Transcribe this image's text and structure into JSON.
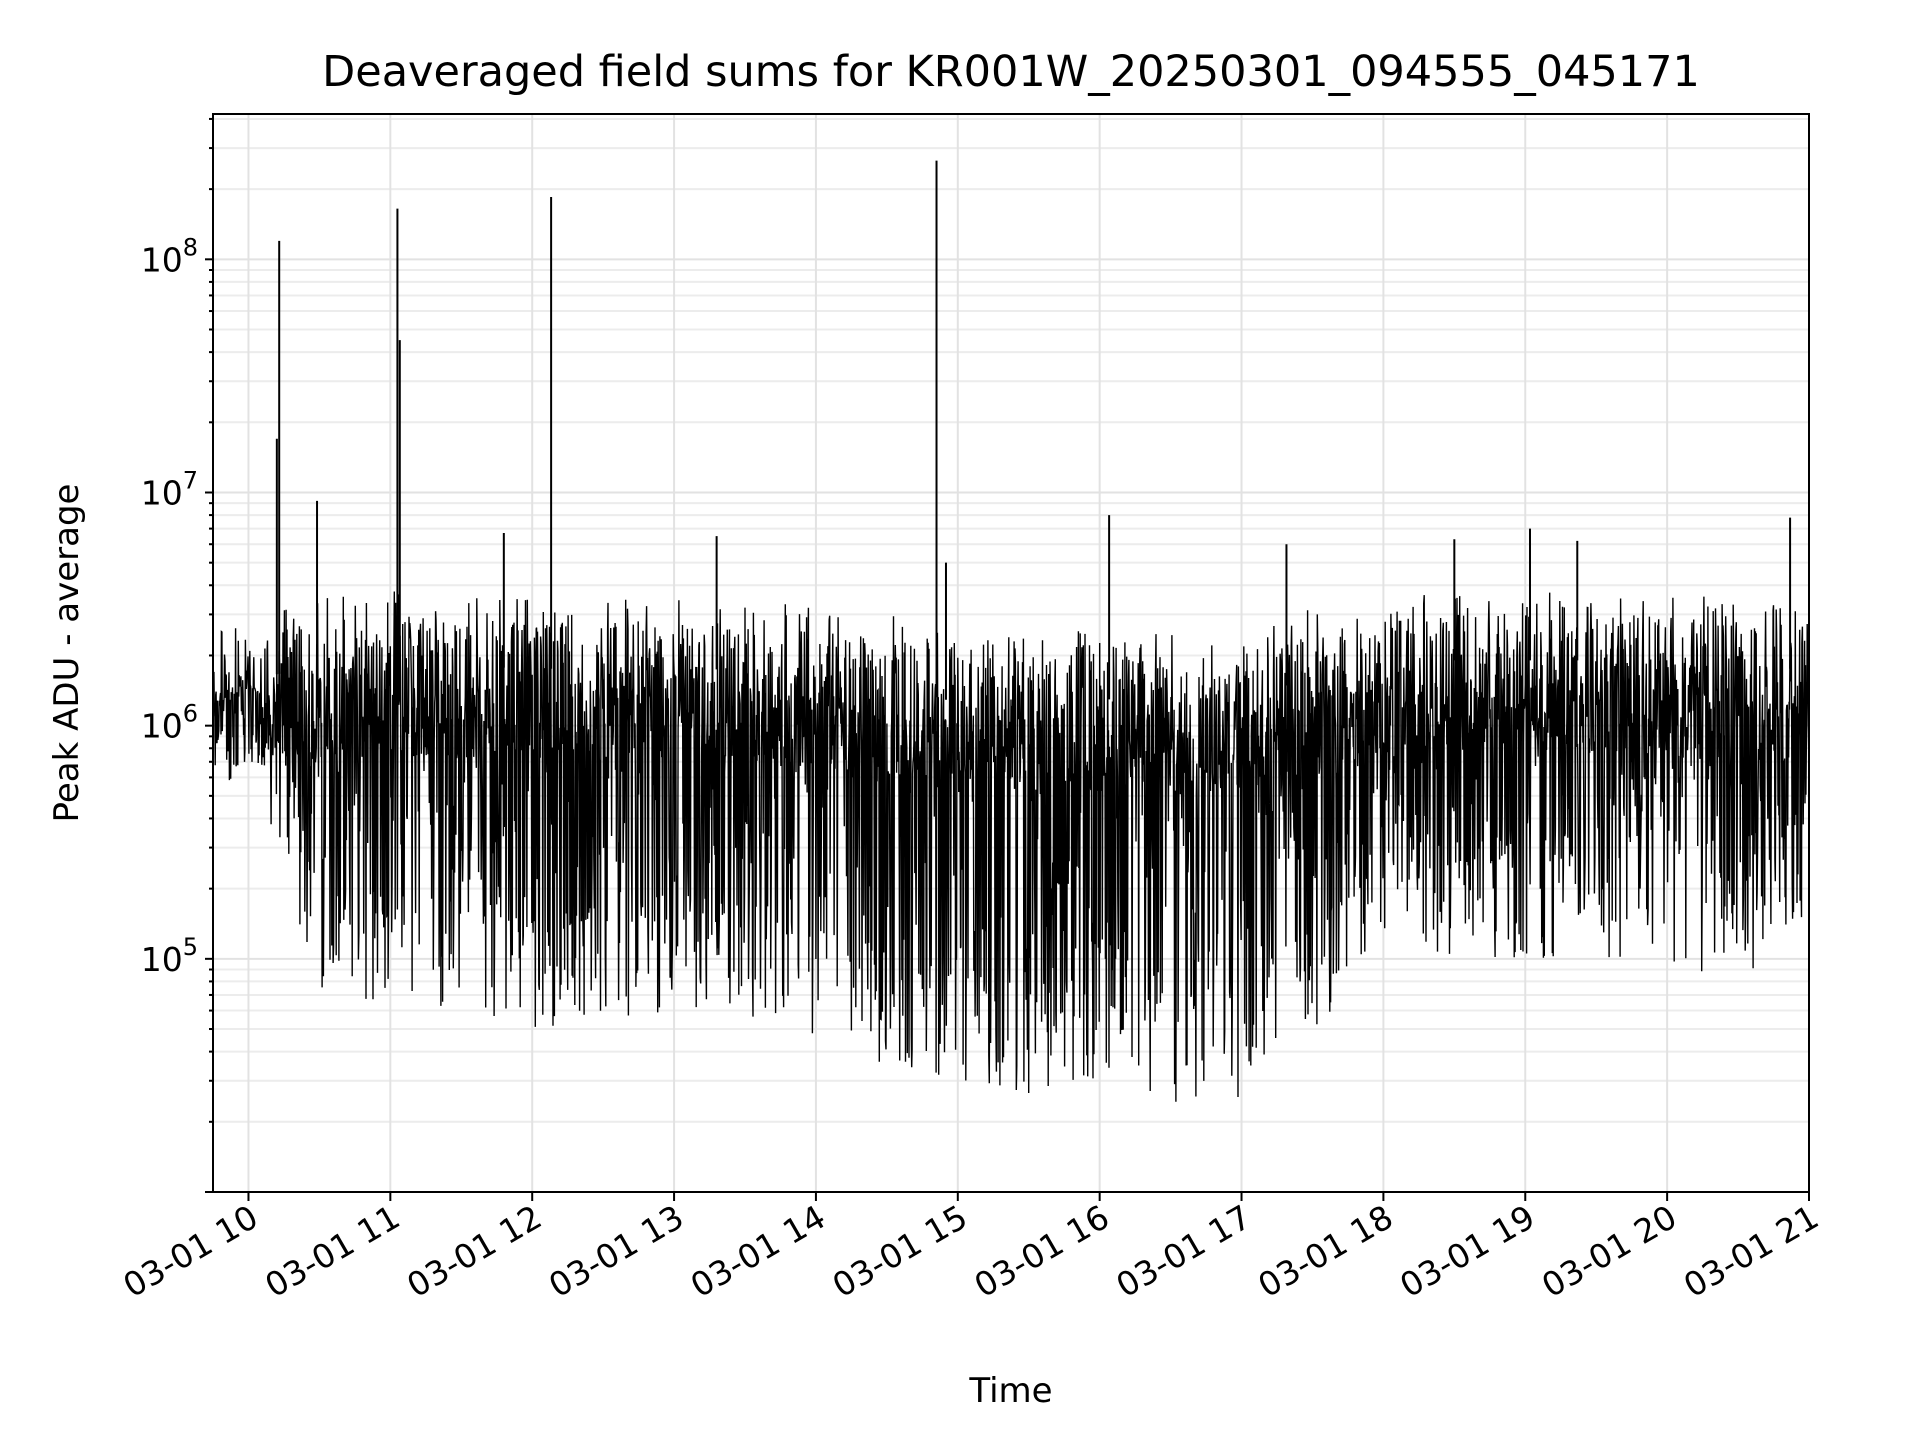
{
  "chart_data": {
    "type": "line",
    "title": "Deaveraged field sums for KR001W_20250301_094555_045171",
    "xlabel": "Time",
    "ylabel": "Peak ADU - average",
    "y_scale": "log",
    "ylim": [
      10000,
      420000000
    ],
    "xlim": [
      "2025-03-01 09:45",
      "2025-03-01 21:00"
    ],
    "x_ticks": [
      "03-01 10",
      "03-01 11",
      "03-01 12",
      "03-01 13",
      "03-01 14",
      "03-01 15",
      "03-01 16",
      "03-01 17",
      "03-01 18",
      "03-01 19",
      "03-01 20",
      "03-01 21"
    ],
    "y_ticks": [
      {
        "base": "10",
        "exp": "5",
        "value": 100000
      },
      {
        "base": "10",
        "exp": "6",
        "value": 1000000
      },
      {
        "base": "10",
        "exp": "7",
        "value": 10000000
      },
      {
        "base": "10",
        "exp": "8",
        "value": 100000000
      }
    ],
    "grid": true,
    "line_color": "#000000",
    "envelope": [
      {
        "t": "2025-03-01 09:45",
        "high": 2500000,
        "low": 500000
      },
      {
        "t": "2025-03-01 10:00",
        "high": 3200000,
        "low": 700000
      },
      {
        "t": "2025-03-01 10:30",
        "high": 3500000,
        "low": 75000
      },
      {
        "t": "2025-03-01 11:00",
        "high": 3800000,
        "low": 60000
      },
      {
        "t": "2025-03-01 11:30",
        "high": 3600000,
        "low": 60000
      },
      {
        "t": "2025-03-01 12:00",
        "high": 3500000,
        "low": 50000
      },
      {
        "t": "2025-03-01 12:30",
        "high": 3500000,
        "low": 55000
      },
      {
        "t": "2025-03-01 13:00",
        "high": 3600000,
        "low": 60000
      },
      {
        "t": "2025-03-01 13:30",
        "high": 3400000,
        "low": 55000
      },
      {
        "t": "2025-03-01 14:00",
        "high": 3300000,
        "low": 45000
      },
      {
        "t": "2025-03-01 14:30",
        "high": 3000000,
        "low": 35000
      },
      {
        "t": "2025-03-01 15:00",
        "high": 2500000,
        "low": 30000
      },
      {
        "t": "2025-03-01 15:30",
        "high": 2500000,
        "low": 25000
      },
      {
        "t": "2025-03-01 16:00",
        "high": 2600000,
        "low": 30000
      },
      {
        "t": "2025-03-01 16:30",
        "high": 2500000,
        "low": 22000
      },
      {
        "t": "2025-03-01 17:00",
        "high": 2600000,
        "low": 25000
      },
      {
        "t": "2025-03-01 17:30",
        "high": 3200000,
        "low": 50000
      },
      {
        "t": "2025-03-01 18:00",
        "high": 3600000,
        "low": 100000
      },
      {
        "t": "2025-03-01 18:30",
        "high": 3800000,
        "low": 100000
      },
      {
        "t": "2025-03-01 19:00",
        "high": 3800000,
        "low": 100000
      },
      {
        "t": "2025-03-01 19:30",
        "high": 3800000,
        "low": 100000
      },
      {
        "t": "2025-03-01 20:00",
        "high": 3700000,
        "low": 100000
      },
      {
        "t": "2025-03-01 20:30",
        "high": 3500000,
        "low": 70000
      },
      {
        "t": "2025-03-01 21:00",
        "high": 3500000,
        "low": 150000
      }
    ],
    "spikes": [
      {
        "t": "2025-03-01 10:13",
        "value": 120000000
      },
      {
        "t": "2025-03-01 10:12",
        "value": 17000000
      },
      {
        "t": "2025-03-01 10:29",
        "value": 9200000
      },
      {
        "t": "2025-03-01 11:03",
        "value": 165000000
      },
      {
        "t": "2025-03-01 11:04",
        "value": 45000000
      },
      {
        "t": "2025-03-01 11:48",
        "value": 6700000
      },
      {
        "t": "2025-03-01 12:08",
        "value": 185000000
      },
      {
        "t": "2025-03-01 13:18",
        "value": 6500000
      },
      {
        "t": "2025-03-01 14:51",
        "value": 265000000
      },
      {
        "t": "2025-03-01 14:55",
        "value": 5000000
      },
      {
        "t": "2025-03-01 16:04",
        "value": 8000000
      },
      {
        "t": "2025-03-01 17:19",
        "value": 6000000
      },
      {
        "t": "2025-03-01 18:30",
        "value": 6300000
      },
      {
        "t": "2025-03-01 19:02",
        "value": 7000000
      },
      {
        "t": "2025-03-01 19:22",
        "value": 6200000
      },
      {
        "t": "2025-03-01 20:52",
        "value": 7800000
      }
    ]
  }
}
